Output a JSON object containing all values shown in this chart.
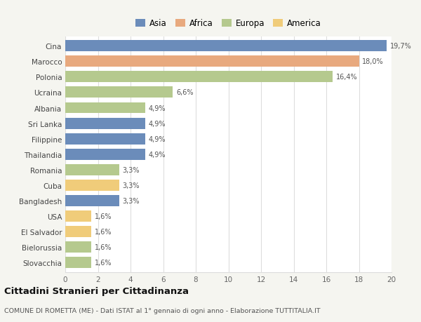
{
  "countries": [
    "Cina",
    "Marocco",
    "Polonia",
    "Ucraina",
    "Albania",
    "Sri Lanka",
    "Filippine",
    "Thailandia",
    "Romania",
    "Cuba",
    "Bangladesh",
    "USA",
    "El Salvador",
    "Bielorussia",
    "Slovacchia"
  ],
  "values": [
    19.7,
    18.0,
    16.4,
    6.6,
    4.9,
    4.9,
    4.9,
    4.9,
    3.3,
    3.3,
    3.3,
    1.6,
    1.6,
    1.6,
    1.6
  ],
  "labels": [
    "19,7%",
    "18,0%",
    "16,4%",
    "6,6%",
    "4,9%",
    "4,9%",
    "4,9%",
    "4,9%",
    "3,3%",
    "3,3%",
    "3,3%",
    "1,6%",
    "1,6%",
    "1,6%",
    "1,6%"
  ],
  "continents": [
    "Asia",
    "Africa",
    "Europa",
    "Europa",
    "Europa",
    "Asia",
    "Asia",
    "Asia",
    "Europa",
    "America",
    "Asia",
    "America",
    "America",
    "Europa",
    "Europa"
  ],
  "colors": {
    "Asia": "#6b8cba",
    "Africa": "#e8a97e",
    "Europa": "#b5c98e",
    "America": "#f0cc7a"
  },
  "legend_order": [
    "Asia",
    "Africa",
    "Europa",
    "America"
  ],
  "title": "Cittadini Stranieri per Cittadinanza",
  "subtitle": "COMUNE DI ROMETTA (ME) - Dati ISTAT al 1° gennaio di ogni anno - Elaborazione TUTTITALIA.IT",
  "xlim": [
    0,
    20
  ],
  "xticks": [
    0,
    2,
    4,
    6,
    8,
    10,
    12,
    14,
    16,
    18,
    20
  ],
  "background_color": "#f5f5f0",
  "bar_background": "#ffffff",
  "grid_color": "#dddddd"
}
